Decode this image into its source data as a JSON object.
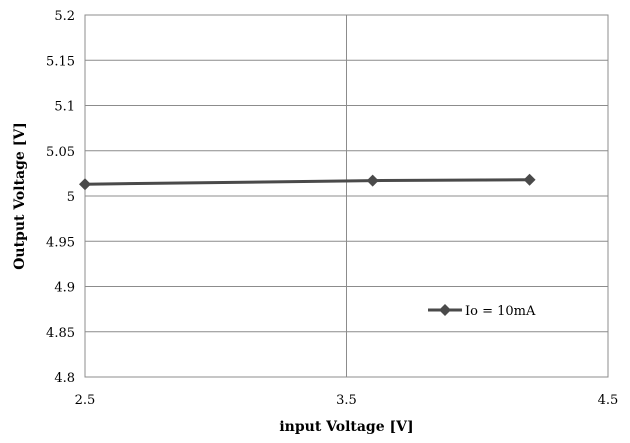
{
  "chart_data": {
    "type": "line",
    "xlabel": "input Voltage [V]",
    "ylabel": "Output Voltage [V]",
    "xlim": [
      2.5,
      4.5
    ],
    "ylim": [
      4.8,
      5.2
    ],
    "x_ticks": [
      2.5,
      3.5,
      4.5
    ],
    "x_tick_labels": [
      "2.5",
      "3.5",
      "4.5"
    ],
    "y_ticks": [
      4.8,
      4.85,
      4.9,
      4.95,
      5.0,
      5.05,
      5.1,
      5.15,
      5.2
    ],
    "y_tick_labels": [
      "4.8",
      "4.85",
      "4.9",
      "4.95",
      "5",
      "5.05",
      "5.1",
      "5.15",
      "5.2"
    ],
    "grid": true,
    "legend_position": "inside-lower-right",
    "series": [
      {
        "name": "Io = 10mA",
        "color": "#4a4a4a",
        "marker": "diamond",
        "x": [
          2.5,
          3.6,
          4.2
        ],
        "y": [
          5.013,
          5.017,
          5.018
        ]
      }
    ]
  }
}
